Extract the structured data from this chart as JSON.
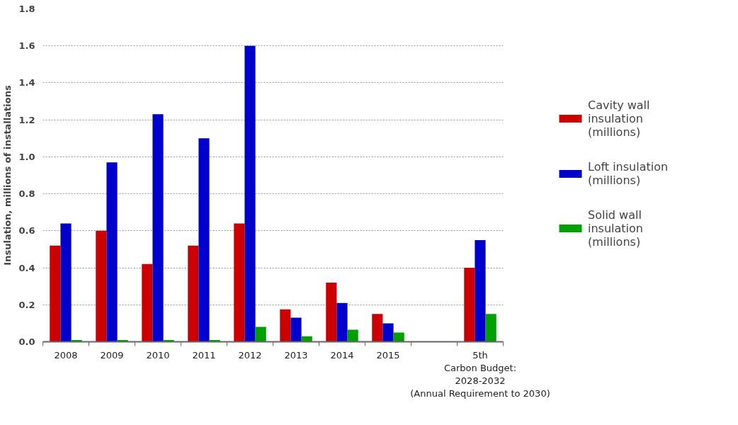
{
  "chart_data": {
    "type": "bar",
    "ylabel": "Insulation, millions of installations",
    "categories": [
      "2008",
      "2009",
      "2010",
      "2011",
      "2012",
      "2013",
      "2014",
      "2015",
      null,
      "5th\nCarbon Budget:\n2028-2032\n(Annual Requirement to 2030)"
    ],
    "series": [
      {
        "name": "Cavity wall insulation (millions)",
        "color": "#cc0000",
        "values": [
          0.52,
          0.6,
          0.42,
          0.52,
          0.64,
          0.175,
          0.32,
          0.15,
          null,
          0.4
        ]
      },
      {
        "name": "Loft insulation (millions)",
        "color": "#0000cc",
        "values": [
          0.64,
          0.97,
          1.23,
          1.1,
          1.6,
          0.13,
          0.21,
          0.1,
          null,
          0.55
        ]
      },
      {
        "name": "Solid wall insulation (millions)",
        "color": "#00a000",
        "values": [
          0.01,
          0.01,
          0.01,
          0.01,
          0.08,
          0.03,
          0.065,
          0.05,
          null,
          0.15
        ]
      }
    ],
    "ylim": [
      0,
      1.8
    ],
    "yticks": [
      {
        "value": 0,
        "label": "0.0"
      },
      {
        "value": 0.2,
        "label": "0.2"
      },
      {
        "value": 0.4,
        "label": "0.4"
      },
      {
        "value": 0.6,
        "label": "0.6"
      },
      {
        "value": 0.8,
        "label": "0.8"
      },
      {
        "value": 1.0,
        "label": "1.0"
      },
      {
        "value": 1.2,
        "label": "1.2"
      },
      {
        "value": 1.4,
        "label": "1.4"
      },
      {
        "value": 1.6,
        "label": "1.6"
      },
      {
        "value": 1.8,
        "label": "1.8"
      }
    ],
    "grid": "y",
    "legend": "right"
  }
}
